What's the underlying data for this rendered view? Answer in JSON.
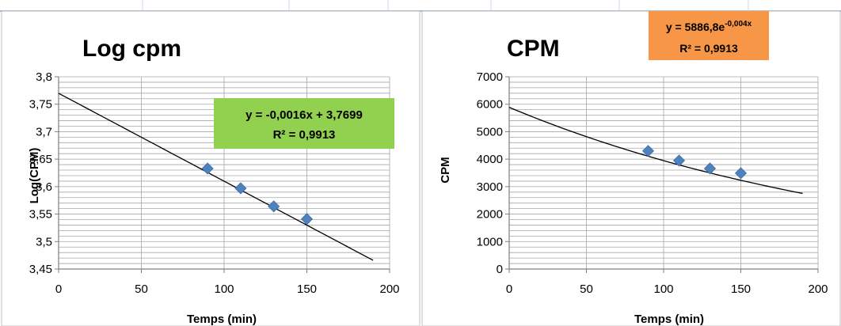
{
  "chart_data": [
    {
      "type": "scatter",
      "title": "Log cpm",
      "xlabel": "Temps (min)",
      "ylabel": "Log(CPM)",
      "xlim": [
        0,
        200
      ],
      "ylim": [
        3.45,
        3.8
      ],
      "x_ticks": [
        "0",
        "50",
        "100",
        "150",
        "200"
      ],
      "y_ticks": [
        "3,45",
        "3,5",
        "3,55",
        "3,6",
        "3,65",
        "3,7",
        "3,75",
        "3,8"
      ],
      "grid": true,
      "points": [
        {
          "x": 90,
          "y": 3.633
        },
        {
          "x": 110,
          "y": 3.597
        },
        {
          "x": 130,
          "y": 3.564
        },
        {
          "x": 150,
          "y": 3.541
        }
      ],
      "trendline": {
        "kind": "linear",
        "slope": -0.0016,
        "intercept": 3.7699,
        "x_range": [
          0,
          190
        ],
        "equation": "y = -0,0016x + 3,7699",
        "r2": "R² = 0,9913",
        "label_color": "#92d050"
      },
      "point_color": "#4f81bd"
    },
    {
      "type": "scatter",
      "title": "CPM",
      "xlabel": "Temps (min)",
      "ylabel": "CPM",
      "xlim": [
        0,
        200
      ],
      "ylim": [
        0,
        7000
      ],
      "x_ticks": [
        "0",
        "50",
        "100",
        "150",
        "200"
      ],
      "y_ticks": [
        "0",
        "1000",
        "2000",
        "3000",
        "4000",
        "5000",
        "6000",
        "7000"
      ],
      "grid": true,
      "points": [
        {
          "x": 90,
          "y": 4300
        },
        {
          "x": 110,
          "y": 3950
        },
        {
          "x": 130,
          "y": 3660
        },
        {
          "x": 150,
          "y": 3490
        }
      ],
      "trendline": {
        "kind": "exponential",
        "a": 5886.8,
        "b": -0.004,
        "x_range": [
          0,
          190
        ],
        "equation_base": "y = 5886,8e",
        "equation_exp": "-0,004x",
        "r2": "R² = 0,9913",
        "label_color": "#f79646"
      },
      "point_color": "#4f81bd"
    }
  ]
}
